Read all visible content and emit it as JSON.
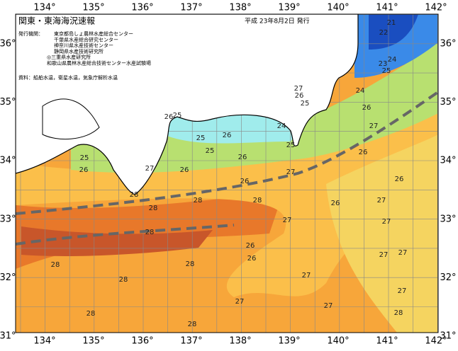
{
  "header": {
    "title": "関東・東海海況速報",
    "date": "平成 23年8月2日 発行"
  },
  "issuers": {
    "heading": "発行機関：",
    "lines": [
      "東京都島しょ農林水産総合センター",
      "千葉県水産総合研究センター",
      "神奈川県水産技術センター",
      "静岡県水産技術研究所",
      "◎三重県水産研究所",
      "和歌山県農林水産総合技術センター水産試験場"
    ]
  },
  "source": "資料：船舶水温，衛星水温，気象庁解析水温",
  "axes": {
    "longitudes": [
      "134°",
      "135°",
      "136°",
      "137°",
      "138°",
      "139°",
      "140°",
      "141°",
      "142°"
    ],
    "latitudes": [
      "36°",
      "35°",
      "34°",
      "33°",
      "32°",
      "31°"
    ]
  },
  "temperature_labels": [
    "21",
    "22",
    "24",
    "23",
    "25",
    "24",
    "26",
    "27",
    "26",
    "26",
    "27",
    "27",
    "27",
    "27",
    "27",
    "28",
    "27",
    "27",
    "27",
    "26",
    "27",
    "26",
    "26",
    "25",
    "24",
    "27",
    "26",
    "25",
    "26",
    "25",
    "25",
    "25",
    "26",
    "26",
    "27",
    "25",
    "26",
    "28",
    "28",
    "28",
    "28",
    "28",
    "26",
    "26",
    "28",
    "28",
    "28",
    "27",
    "28",
    "28"
  ]
}
